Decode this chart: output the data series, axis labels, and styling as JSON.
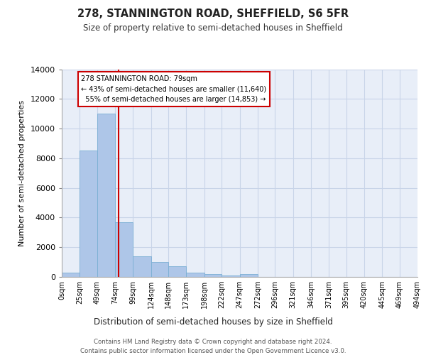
{
  "title": "278, STANNINGTON ROAD, SHEFFIELD, S6 5FR",
  "subtitle": "Size of property relative to semi-detached houses in Sheffield",
  "xlabel": "Distribution of semi-detached houses by size in Sheffield",
  "ylabel": "Number of semi-detached properties",
  "footer_line1": "Contains HM Land Registry data © Crown copyright and database right 2024.",
  "footer_line2": "Contains public sector information licensed under the Open Government Licence v3.0.",
  "property_label": "278 STANNINGTON ROAD: 79sqm",
  "smaller_pct": "43% of semi-detached houses are smaller (11,640)",
  "larger_pct": "55% of semi-detached houses are larger (14,853)",
  "property_size_sqm": 79,
  "bin_edges": [
    0,
    25,
    49,
    74,
    99,
    124,
    148,
    173,
    198,
    222,
    247,
    272,
    296,
    321,
    346,
    371,
    395,
    420,
    445,
    469,
    494
  ],
  "bin_labels": [
    "0sqm",
    "25sqm",
    "49sqm",
    "74sqm",
    "99sqm",
    "124sqm",
    "148sqm",
    "173sqm",
    "198sqm",
    "222sqm",
    "247sqm",
    "272sqm",
    "296sqm",
    "321sqm",
    "346sqm",
    "371sqm",
    "395sqm",
    "420sqm",
    "445sqm",
    "469sqm",
    "494sqm"
  ],
  "bar_heights": [
    300,
    8500,
    11000,
    3700,
    1400,
    1000,
    700,
    300,
    200,
    100,
    200,
    0,
    0,
    0,
    0,
    0,
    0,
    0,
    0,
    0
  ],
  "bar_color": "#aec6e8",
  "bar_edge_color": "#7aafd4",
  "grid_color": "#c8d4e8",
  "background_color": "#e8eef8",
  "annotation_box_color": "#ffffff",
  "annotation_box_edge": "#cc0000",
  "vertical_line_color": "#cc0000",
  "ylim": [
    0,
    14000
  ],
  "yticks": [
    0,
    2000,
    4000,
    6000,
    8000,
    10000,
    12000,
    14000
  ]
}
